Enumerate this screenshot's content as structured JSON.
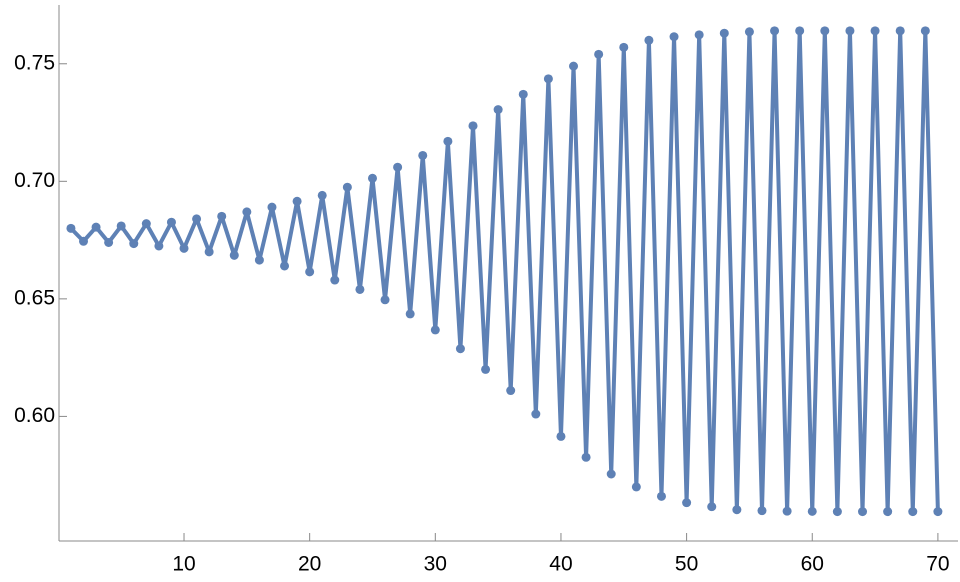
{
  "chart_data": {
    "type": "line",
    "x": [
      1,
      2,
      3,
      4,
      5,
      6,
      7,
      8,
      9,
      10,
      11,
      12,
      13,
      14,
      15,
      16,
      17,
      18,
      19,
      20,
      21,
      22,
      23,
      24,
      25,
      26,
      27,
      28,
      29,
      30,
      31,
      32,
      33,
      34,
      35,
      36,
      37,
      38,
      39,
      40,
      41,
      42,
      43,
      44,
      45,
      46,
      47,
      48,
      49,
      50,
      51,
      52,
      53,
      54,
      55,
      56,
      57,
      58,
      59,
      60,
      61,
      62,
      63,
      64,
      65,
      66,
      67,
      68,
      69,
      70
    ],
    "series": [
      {
        "color": "#5e81b5",
        "values": [
          0.68,
          0.6745,
          0.6805,
          0.674,
          0.681,
          0.6735,
          0.682,
          0.6725,
          0.6826,
          0.6715,
          0.684,
          0.67,
          0.6851,
          0.6685,
          0.687,
          0.6665,
          0.689,
          0.664,
          0.6915,
          0.6615,
          0.694,
          0.658,
          0.6975,
          0.654,
          0.7013,
          0.6496,
          0.706,
          0.6436,
          0.711,
          0.6368,
          0.717,
          0.6288,
          0.7236,
          0.62,
          0.7305,
          0.611,
          0.737,
          0.601,
          0.7436,
          0.5915,
          0.749,
          0.5826,
          0.754,
          0.5755,
          0.757,
          0.57,
          0.76,
          0.566,
          0.7615,
          0.5633,
          0.7623,
          0.5616,
          0.763,
          0.5603,
          0.7636,
          0.5599,
          0.764,
          0.5597,
          0.764,
          0.5596,
          0.764,
          0.5595,
          0.764,
          0.5595,
          0.764,
          0.5595,
          0.764,
          0.5595,
          0.764,
          0.5595
        ]
      }
    ],
    "xlim": [
      0.05,
      71.6
    ],
    "ylim": [
      0.547,
      0.775
    ],
    "xticks": [
      10,
      20,
      30,
      40,
      50,
      60,
      70
    ],
    "yticks": [
      {
        "value": 0.6,
        "label": "0.60"
      },
      {
        "value": 0.65,
        "label": "0.65"
      },
      {
        "value": 0.7,
        "label": "0.70"
      },
      {
        "value": 0.75,
        "label": "0.75"
      }
    ]
  }
}
